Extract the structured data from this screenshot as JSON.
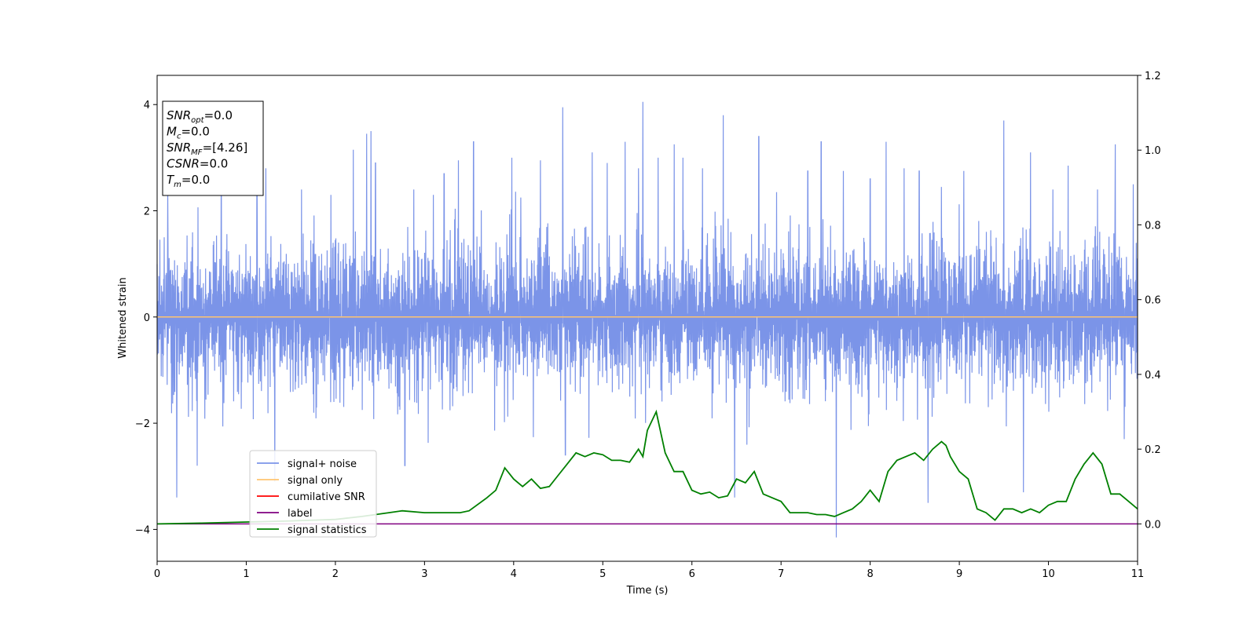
{
  "chart_data": {
    "type": "line",
    "xlabel": "Time (s)",
    "ylabel": "Whitened strain",
    "xlim": [
      0,
      11
    ],
    "ylim": [
      -4.6,
      4.55
    ],
    "y2lim": [
      -0.1,
      1.2
    ],
    "x_ticks": [
      "0",
      "1",
      "2",
      "3",
      "4",
      "5",
      "6",
      "7",
      "8",
      "9",
      "10",
      "11"
    ],
    "y_ticks": [
      "−4",
      "−2",
      "0",
      "2",
      "4"
    ],
    "y2_ticks": [
      "0.0",
      "0.2",
      "0.4",
      "0.6",
      "0.8",
      "1.0",
      "1.2"
    ],
    "grid": false,
    "legend_position": "lower-left",
    "legend": [
      "signal+ noise",
      "signal only",
      "cumilative SNR",
      "label",
      "signal statistics"
    ],
    "colors": {
      "signal_noise": "#7b94e8",
      "signal_only": "#ffc470",
      "cumulative_snr": "#ff0000",
      "label": "#800080",
      "signal_statistics": "#008000"
    },
    "info_box": [
      {
        "symbol": "SNR",
        "sub": "opt",
        "value": "=0.0"
      },
      {
        "symbol": "M",
        "sub": "c",
        "value": "=0.0"
      },
      {
        "symbol": "SNR",
        "sub": "MF",
        "value": "=[4.26]"
      },
      {
        "symbol": "CSNR",
        "sub": "",
        "value": "=0.0"
      },
      {
        "symbol": "T",
        "sub": "m",
        "value": "=0.0"
      }
    ],
    "signal_noise": {
      "approx_std": 0.75,
      "spikes": [
        [
          0.12,
          2.4
        ],
        [
          0.22,
          -3.4
        ],
        [
          0.45,
          -2.8
        ],
        [
          0.72,
          2.35
        ],
        [
          1.12,
          2.3
        ],
        [
          1.22,
          2.8
        ],
        [
          1.32,
          -3.1
        ],
        [
          1.62,
          2.4
        ],
        [
          1.95,
          2.3
        ],
        [
          2.2,
          3.15
        ],
        [
          2.35,
          3.45
        ],
        [
          2.4,
          3.5
        ],
        [
          2.45,
          2.9
        ],
        [
          2.78,
          -2.8
        ],
        [
          2.88,
          2.4
        ],
        [
          3.1,
          2.3
        ],
        [
          3.22,
          2.7
        ],
        [
          3.38,
          2.95
        ],
        [
          3.55,
          3.3
        ],
        [
          3.98,
          3.0
        ],
        [
          4.08,
          2.25
        ],
        [
          4.3,
          2.95
        ],
        [
          4.55,
          3.95
        ],
        [
          4.58,
          -2.6
        ],
        [
          4.88,
          3.1
        ],
        [
          5.05,
          2.9
        ],
        [
          5.25,
          3.3
        ],
        [
          5.4,
          2.8
        ],
        [
          5.45,
          4.05
        ],
        [
          5.62,
          3.0
        ],
        [
          5.8,
          3.25
        ],
        [
          5.9,
          3.0
        ],
        [
          6.12,
          2.8
        ],
        [
          6.35,
          3.8
        ],
        [
          6.48,
          -3.4
        ],
        [
          6.75,
          3.4
        ],
        [
          6.95,
          2.35
        ],
        [
          7.3,
          2.75
        ],
        [
          7.45,
          3.3
        ],
        [
          7.62,
          -4.15
        ],
        [
          7.7,
          2.75
        ],
        [
          8.0,
          2.6
        ],
        [
          8.18,
          3.3
        ],
        [
          8.38,
          2.8
        ],
        [
          8.55,
          2.75
        ],
        [
          8.65,
          -3.5
        ],
        [
          8.8,
          2.45
        ],
        [
          9.05,
          2.75
        ],
        [
          9.5,
          3.7
        ],
        [
          9.72,
          -3.3
        ],
        [
          9.8,
          3.1
        ],
        [
          10.05,
          2.4
        ],
        [
          10.22,
          2.85
        ],
        [
          10.55,
          2.4
        ],
        [
          10.75,
          3.25
        ],
        [
          10.85,
          -2.3
        ],
        [
          10.95,
          2.5
        ]
      ]
    },
    "signal_only": {
      "x": [
        0,
        11
      ],
      "y": [
        0,
        0
      ]
    },
    "cumulative_snr": {
      "x": [
        0,
        11
      ],
      "y": [
        0,
        0
      ]
    },
    "label": {
      "x": [
        0,
        11
      ],
      "y": [
        0,
        0
      ]
    },
    "signal_statistics": {
      "x": [
        0,
        0.5,
        1.0,
        1.5,
        2.0,
        2.3,
        2.6,
        2.75,
        3.0,
        3.2,
        3.4,
        3.5,
        3.7,
        3.8,
        3.9,
        4.0,
        4.1,
        4.2,
        4.3,
        4.4,
        4.5,
        4.6,
        4.7,
        4.8,
        4.9,
        5.0,
        5.1,
        5.2,
        5.3,
        5.4,
        5.45,
        5.5,
        5.6,
        5.7,
        5.8,
        5.9,
        6.0,
        6.1,
        6.2,
        6.3,
        6.4,
        6.5,
        6.6,
        6.7,
        6.8,
        6.9,
        7.0,
        7.1,
        7.2,
        7.3,
        7.4,
        7.5,
        7.6,
        7.7,
        7.8,
        7.9,
        8.0,
        8.1,
        8.2,
        8.3,
        8.4,
        8.5,
        8.6,
        8.7,
        8.8,
        8.85,
        8.9,
        9.0,
        9.1,
        9.2,
        9.3,
        9.4,
        9.5,
        9.6,
        9.7,
        9.8,
        9.9,
        10.0,
        10.1,
        10.2,
        10.3,
        10.4,
        10.5,
        10.6,
        10.7,
        10.8,
        10.9,
        11.0
      ],
      "y": [
        0.0,
        0.002,
        0.005,
        0.008,
        0.012,
        0.02,
        0.03,
        0.035,
        0.03,
        0.03,
        0.03,
        0.035,
        0.07,
        0.09,
        0.15,
        0.12,
        0.1,
        0.12,
        0.095,
        0.1,
        0.13,
        0.16,
        0.19,
        0.18,
        0.19,
        0.185,
        0.17,
        0.17,
        0.165,
        0.2,
        0.18,
        0.25,
        0.3,
        0.19,
        0.14,
        0.14,
        0.09,
        0.08,
        0.085,
        0.07,
        0.075,
        0.12,
        0.11,
        0.14,
        0.08,
        0.07,
        0.06,
        0.03,
        0.03,
        0.03,
        0.025,
        0.025,
        0.02,
        0.03,
        0.04,
        0.06,
        0.09,
        0.06,
        0.14,
        0.17,
        0.18,
        0.19,
        0.17,
        0.2,
        0.22,
        0.21,
        0.18,
        0.14,
        0.12,
        0.04,
        0.03,
        0.01,
        0.04,
        0.04,
        0.03,
        0.04,
        0.03,
        0.05,
        0.06,
        0.06,
        0.12,
        0.16,
        0.19,
        0.16,
        0.08,
        0.08,
        0.06,
        0.04
      ]
    }
  }
}
